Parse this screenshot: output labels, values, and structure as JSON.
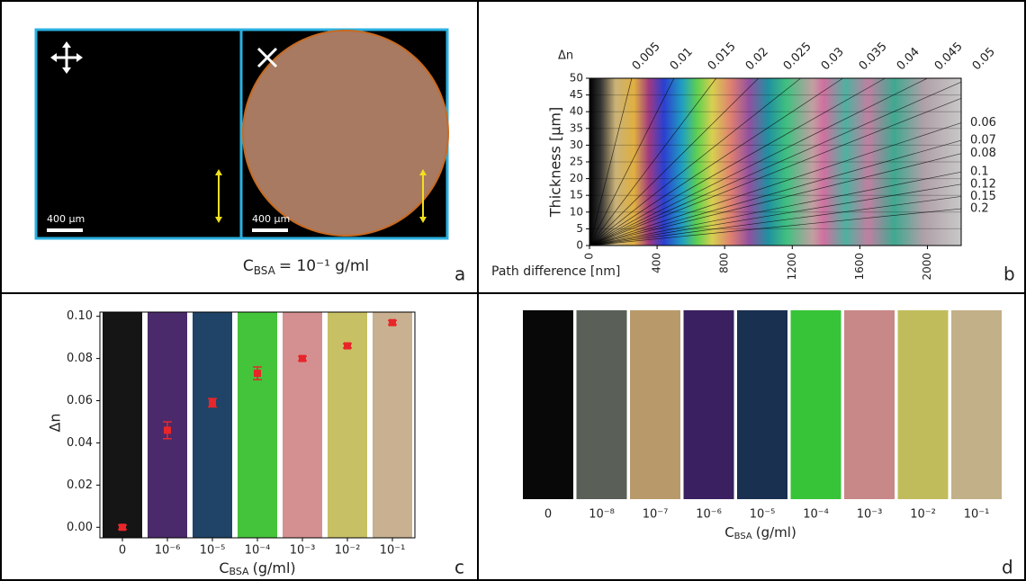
{
  "panel_a": {
    "caption": {
      "symbol": "C",
      "subscript": "BSA",
      "rest": "= 10⁻¹ g/ml"
    },
    "scale_bars": [
      "400 μm",
      "400 μm"
    ],
    "label": "a"
  },
  "chart_data": [
    {
      "type": "michel-levy",
      "top_label": "Δn",
      "y_label": "Thickness [μm]",
      "x_label": "Path difference [nm]",
      "xlim": [
        0,
        2200
      ],
      "xticks": [
        0,
        400,
        800,
        1200,
        1600,
        2000
      ],
      "ylim": [
        0,
        50
      ],
      "yticks": [
        0,
        5,
        10,
        15,
        20,
        25,
        30,
        35,
        40,
        45,
        50
      ],
      "birefringence_top": [
        0.005,
        0.01,
        0.015,
        0.02,
        0.025,
        0.03,
        0.035,
        0.04,
        0.045,
        0.05
      ],
      "birefringence_right": [
        0.06,
        0.07,
        0.08,
        0.1,
        0.12,
        0.15,
        0.2
      ],
      "label": "b"
    },
    {
      "type": "scatter",
      "y_label": "Δn",
      "x_label": {
        "symbol": "C",
        "subscript": "BSA",
        "unit": "(g/ml)"
      },
      "categories": [
        "0",
        "10⁻⁶",
        "10⁻⁵",
        "10⁻⁴",
        "10⁻³",
        "10⁻²",
        "10⁻¹"
      ],
      "values": [
        0.0,
        0.046,
        0.059,
        0.073,
        0.08,
        0.086,
        0.097
      ],
      "errors": [
        0.001,
        0.004,
        0.002,
        0.003,
        0.001,
        0.001,
        0.001
      ],
      "color": "#e8262a",
      "ylim": [
        -0.005,
        0.102
      ],
      "yticks": [
        {
          "value": 0,
          "label": "0.00"
        },
        {
          "value": 0.02,
          "label": "0.02"
        },
        {
          "value": 0.04,
          "label": "0.04"
        },
        {
          "value": 0.06,
          "label": "0.06"
        },
        {
          "value": 0.08,
          "label": "0.08"
        },
        {
          "value": 0.1,
          "label": "0.10"
        }
      ],
      "label": "c"
    }
  ],
  "panel_d": {
    "categories": [
      "0",
      "10⁻⁸",
      "10⁻⁷",
      "10⁻⁶",
      "10⁻⁵",
      "10⁻⁴",
      "10⁻³",
      "10⁻²",
      "10⁻¹"
    ],
    "x_label": {
      "symbol": "C",
      "subscript": "BSA",
      "unit": "(g/ml)"
    },
    "label": "d"
  }
}
